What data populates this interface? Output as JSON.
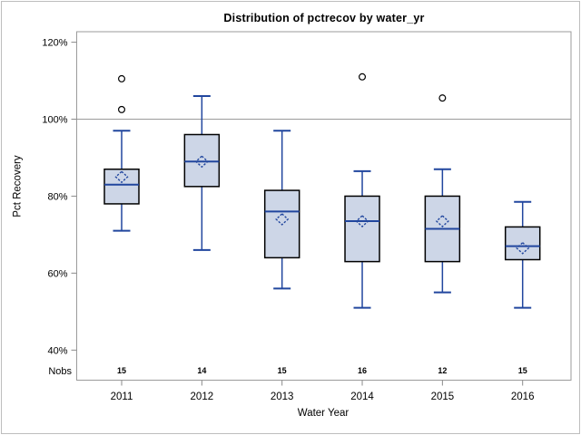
{
  "figure": {
    "title": "Distribution of pctrecov by water_yr",
    "y_axis_label": "Pct Recovery",
    "x_axis_label": "Water Year",
    "nobs_label": "Nobs"
  },
  "colors": {
    "box_fill": "#cdd6e7",
    "box_border": "#000000",
    "line_blue": "#21469e",
    "wall_gray": "#9b9b9b",
    "reference_line": "#9b9b9b",
    "tick_mark": "#8a8a8a",
    "outlier_stroke": "#000000",
    "outlier_fill": "#ffffff",
    "text": "#000000"
  },
  "chart_data": {
    "type": "boxplot",
    "title": "Distribution of pctrecov by water_yr",
    "xlabel": "Water Year",
    "ylabel": "Pct Recovery",
    "y_ticks": [
      120,
      100,
      80,
      60,
      40
    ],
    "y_tick_suffix": "%",
    "ylim": [
      32,
      123
    ],
    "reference_line": 100,
    "grid": "off",
    "categories": [
      "2011",
      "2012",
      "2013",
      "2014",
      "2015",
      "2016"
    ],
    "nobs_row_label": "Nobs",
    "nobs": [
      15,
      14,
      15,
      16,
      12,
      15
    ],
    "boxes": [
      {
        "category": "2011",
        "nobs": 15,
        "whisker_low": 71,
        "q1": 78,
        "median": 83,
        "q3": 87,
        "whisker_high": 97,
        "mean": 85,
        "outliers": [
          102.5,
          110.5
        ]
      },
      {
        "category": "2012",
        "nobs": 14,
        "whisker_low": 66,
        "q1": 82.5,
        "median": 89,
        "q3": 96,
        "whisker_high": 106,
        "mean": 89,
        "outliers": []
      },
      {
        "category": "2013",
        "nobs": 15,
        "whisker_low": 56,
        "q1": 64,
        "median": 76,
        "q3": 81.5,
        "whisker_high": 97,
        "mean": 74,
        "outliers": []
      },
      {
        "category": "2014",
        "nobs": 16,
        "whisker_low": 51,
        "q1": 63,
        "median": 73.5,
        "q3": 80,
        "whisker_high": 86.5,
        "mean": 73.5,
        "outliers": [
          111
        ]
      },
      {
        "category": "2015",
        "nobs": 12,
        "whisker_low": 55,
        "q1": 63,
        "median": 71.5,
        "q3": 80,
        "whisker_high": 87,
        "mean": 73.5,
        "outliers": [
          105.5
        ]
      },
      {
        "category": "2016",
        "nobs": 15,
        "whisker_low": 51,
        "q1": 63.5,
        "median": 67,
        "q3": 72,
        "whisker_high": 78.5,
        "mean": 66.5,
        "outliers": []
      }
    ]
  }
}
